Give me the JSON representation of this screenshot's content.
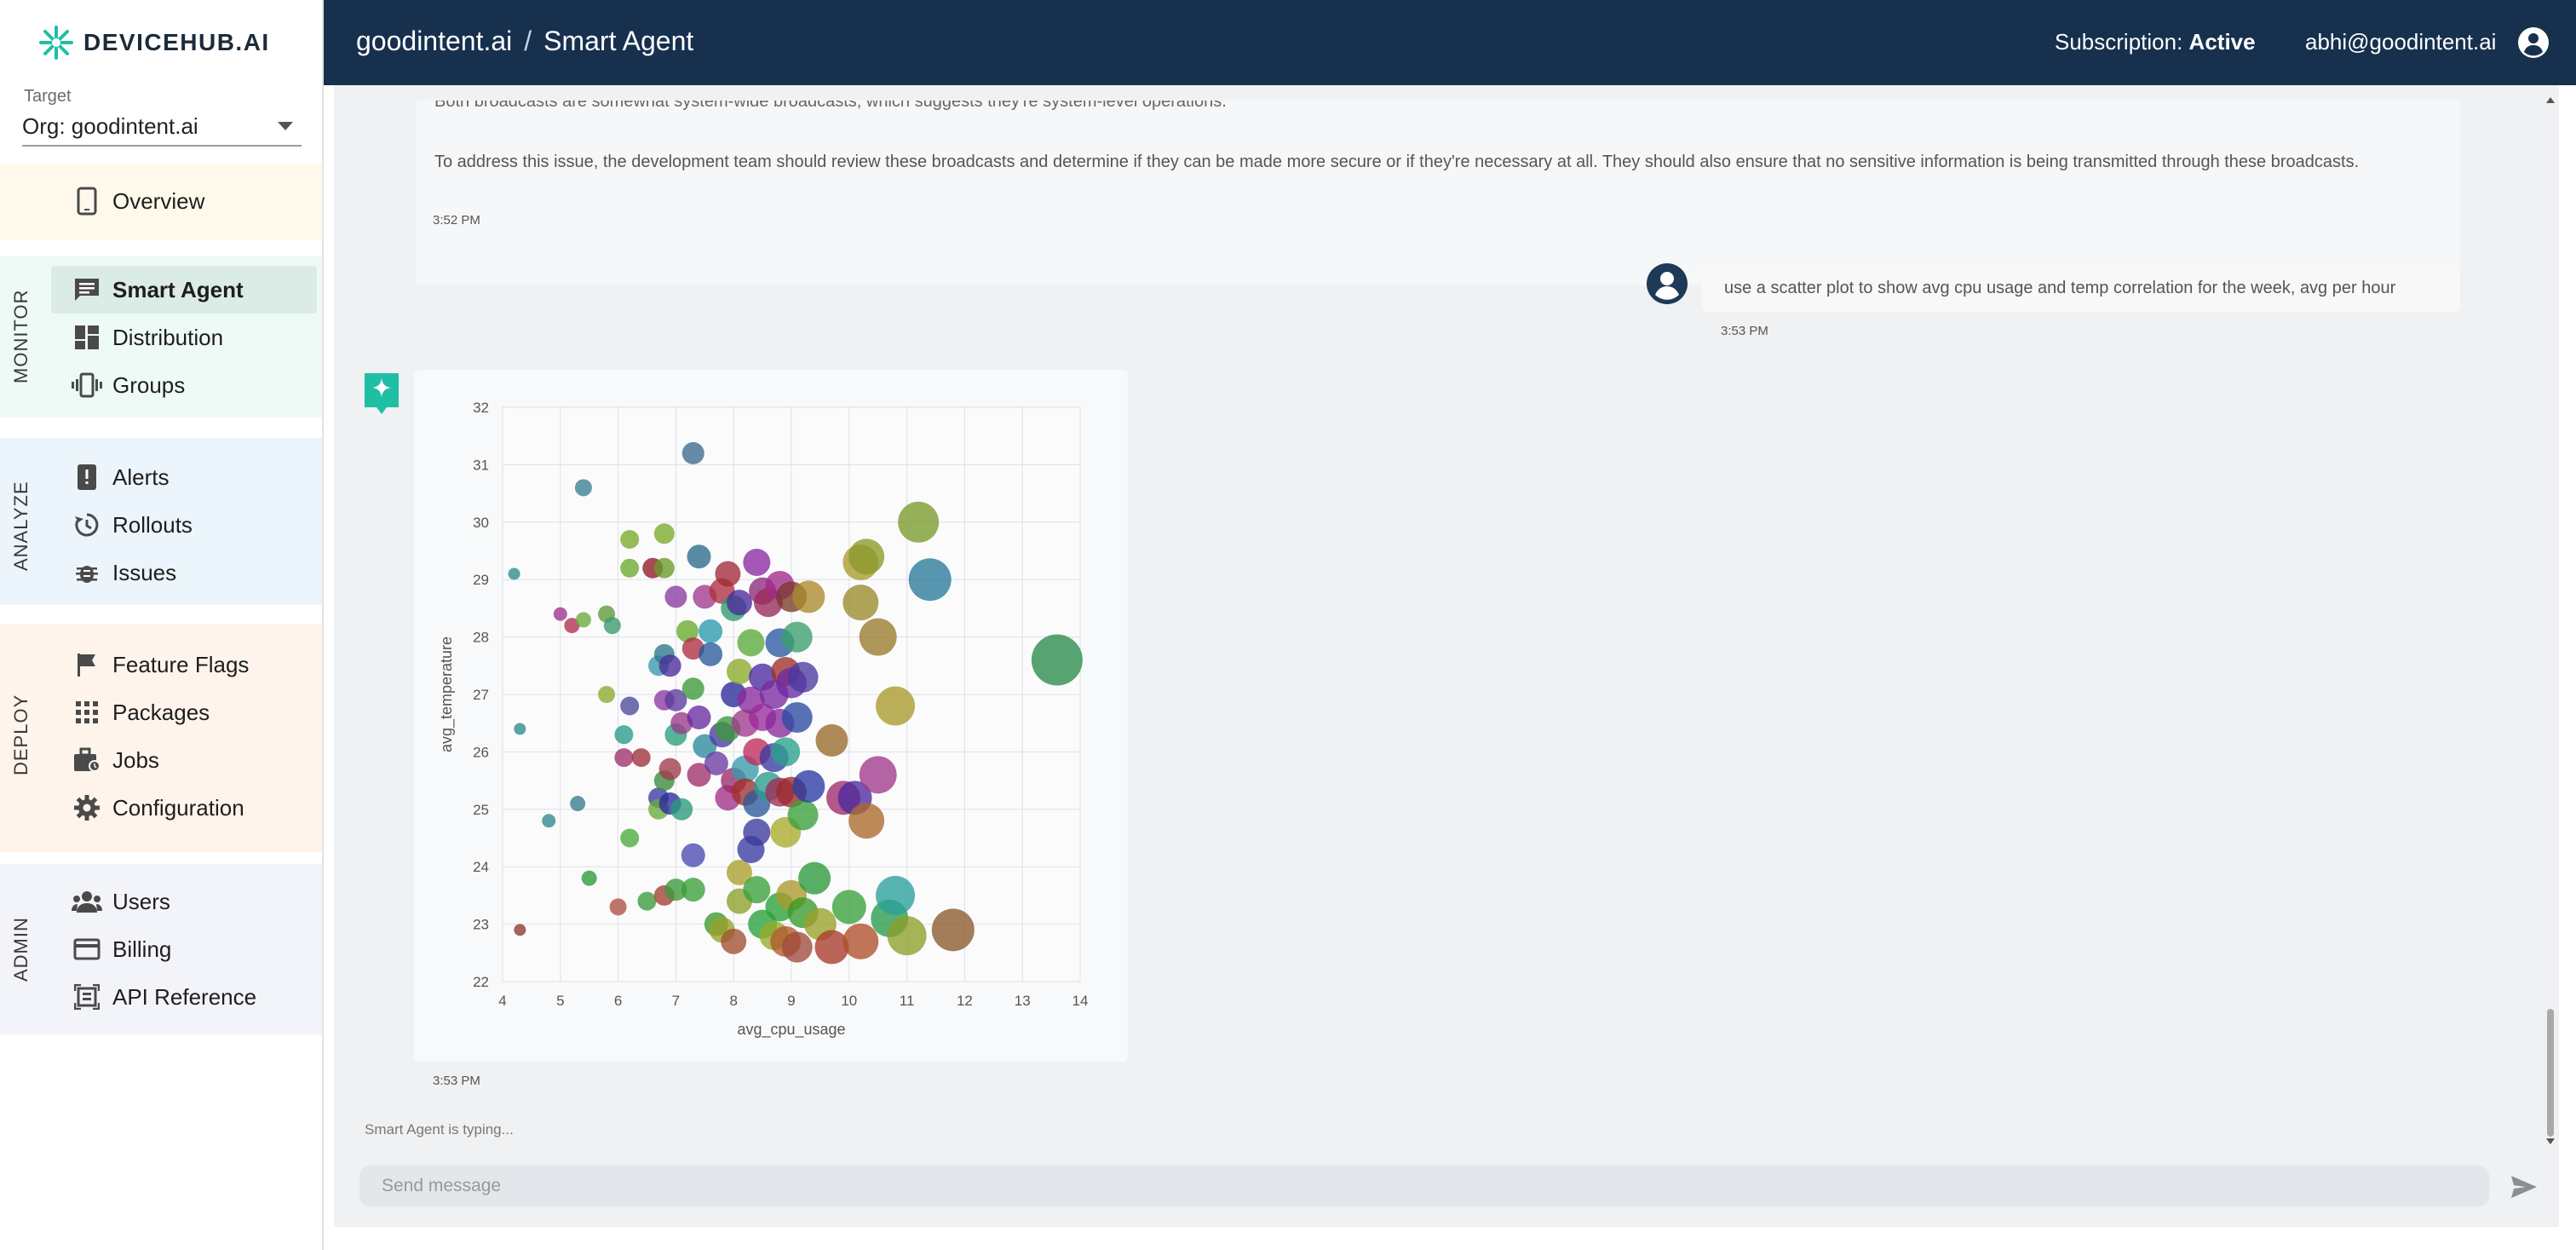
{
  "brand": {
    "name": "DEVICEHUB.AI"
  },
  "target": {
    "label": "Target",
    "value": "Org: goodintent.ai"
  },
  "header": {
    "org": "goodintent.ai",
    "separator": "/",
    "page": "Smart Agent",
    "subscription_label": "Subscription:",
    "subscription_status": "Active",
    "user_email": "abhi@goodintent.ai"
  },
  "sidebar": {
    "overview": {
      "label": "Overview",
      "icon": "phone-icon"
    },
    "sections": {
      "monitor": {
        "title": "MONITOR",
        "items": [
          {
            "label": "Smart Agent",
            "icon": "chat-icon",
            "active": true
          },
          {
            "label": "Distribution",
            "icon": "dashboard-icon"
          },
          {
            "label": "Groups",
            "icon": "vibration-icon"
          }
        ]
      },
      "analyze": {
        "title": "ANALYZE",
        "items": [
          {
            "label": "Alerts",
            "icon": "alert-icon"
          },
          {
            "label": "Rollouts",
            "icon": "history-icon"
          },
          {
            "label": "Issues",
            "icon": "bug-icon"
          }
        ]
      },
      "deploy": {
        "title": "DEPLOY",
        "items": [
          {
            "label": "Feature Flags",
            "icon": "flag-icon"
          },
          {
            "label": "Packages",
            "icon": "apps-icon"
          },
          {
            "label": "Jobs",
            "icon": "briefcase-icon"
          },
          {
            "label": "Configuration",
            "icon": "gear-icon"
          }
        ]
      },
      "admin": {
        "title": "ADMIN",
        "items": [
          {
            "label": "Users",
            "icon": "users-icon"
          },
          {
            "label": "Billing",
            "icon": "credit-card-icon"
          },
          {
            "label": "API Reference",
            "icon": "api-icon"
          }
        ]
      }
    }
  },
  "chat": {
    "agent_message_partial": "Both broadcasts are somewhat system-wide broadcasts, which suggests they're system-level operations.",
    "agent_message": "To address this issue, the development team should review these broadcasts and determine if they can be made more secure or if they're necessary at all. They should also ensure that no sensitive information is being transmitted through these broadcasts.",
    "agent_time_1": "3:52 PM",
    "user_message": "use a scatter plot to show avg cpu usage and temp correlation for the week, avg per hour",
    "user_time": "3:53 PM",
    "agent_time_2": "3:53 PM",
    "typing_text": "Smart Agent is typing...",
    "input_placeholder": "Send message",
    "input_value": ""
  },
  "chart_data": {
    "type": "scatter",
    "title": "",
    "xlabel": "avg_cpu_usage",
    "ylabel": "avg_temperature",
    "xlim": [
      4,
      14
    ],
    "ylim": [
      22,
      32
    ],
    "xticks": [
      4,
      5,
      6,
      7,
      8,
      9,
      10,
      11,
      12,
      13,
      14
    ],
    "yticks": [
      22,
      23,
      24,
      25,
      26,
      27,
      28,
      29,
      30,
      31,
      32
    ],
    "grid": true,
    "legend": "none",
    "encoding": "bubble size and color vary per point",
    "points": [
      {
        "x": 4.2,
        "y": 29.1,
        "r": 7,
        "color": "#2e8b8b"
      },
      {
        "x": 4.3,
        "y": 26.4,
        "r": 7,
        "color": "#2e8b8b"
      },
      {
        "x": 4.3,
        "y": 22.9,
        "r": 7,
        "color": "#8b3a2a"
      },
      {
        "x": 4.8,
        "y": 24.8,
        "r": 8,
        "color": "#2e8b8b"
      },
      {
        "x": 5.0,
        "y": 28.4,
        "r": 8,
        "color": "#a0308a"
      },
      {
        "x": 5.2,
        "y": 28.2,
        "r": 9,
        "color": "#b03050"
      },
      {
        "x": 5.3,
        "y": 25.1,
        "r": 9,
        "color": "#3a7a8a"
      },
      {
        "x": 5.4,
        "y": 30.6,
        "r": 10,
        "color": "#3a8090"
      },
      {
        "x": 5.4,
        "y": 28.3,
        "r": 9,
        "color": "#6aaa3a"
      },
      {
        "x": 5.5,
        "y": 23.8,
        "r": 9,
        "color": "#2a9a3a"
      },
      {
        "x": 5.8,
        "y": 27.0,
        "r": 10,
        "color": "#8aaa2a"
      },
      {
        "x": 5.8,
        "y": 28.4,
        "r": 10,
        "color": "#5a9a3a"
      },
      {
        "x": 5.9,
        "y": 28.2,
        "r": 10,
        "color": "#3a9a6a"
      },
      {
        "x": 6.0,
        "y": 23.3,
        "r": 10,
        "color": "#b05040"
      },
      {
        "x": 6.1,
        "y": 25.9,
        "r": 11,
        "color": "#a0306a"
      },
      {
        "x": 6.1,
        "y": 26.3,
        "r": 11,
        "color": "#2a9a8a"
      },
      {
        "x": 6.2,
        "y": 29.2,
        "r": 11,
        "color": "#6aaa2a"
      },
      {
        "x": 6.2,
        "y": 26.8,
        "r": 11,
        "color": "#4a4a9a"
      },
      {
        "x": 6.2,
        "y": 24.5,
        "r": 11,
        "color": "#4aaa3a"
      },
      {
        "x": 6.2,
        "y": 29.7,
        "r": 11,
        "color": "#7aaa2a"
      },
      {
        "x": 6.4,
        "y": 25.9,
        "r": 11,
        "color": "#a0303a"
      },
      {
        "x": 6.5,
        "y": 23.4,
        "r": 11,
        "color": "#3a9a3a"
      },
      {
        "x": 6.6,
        "y": 29.2,
        "r": 12,
        "color": "#2a9a3a"
      },
      {
        "x": 6.6,
        "y": 29.2,
        "r": 12,
        "color": "#c03050"
      },
      {
        "x": 6.7,
        "y": 27.5,
        "r": 12,
        "color": "#3a9aaa"
      },
      {
        "x": 6.7,
        "y": 25.2,
        "r": 12,
        "color": "#3a3aa0"
      },
      {
        "x": 6.7,
        "y": 25.0,
        "r": 12,
        "color": "#6aaa3a"
      },
      {
        "x": 6.8,
        "y": 29.8,
        "r": 12,
        "color": "#7aaa2a"
      },
      {
        "x": 6.8,
        "y": 27.7,
        "r": 12,
        "color": "#2a7a8a"
      },
      {
        "x": 6.8,
        "y": 26.9,
        "r": 12,
        "color": "#8a3aa0"
      },
      {
        "x": 6.8,
        "y": 25.5,
        "r": 12,
        "color": "#3a8a3a"
      },
      {
        "x": 6.8,
        "y": 23.5,
        "r": 12,
        "color": "#a04030"
      },
      {
        "x": 6.8,
        "y": 29.2,
        "r": 12,
        "color": "#6a9a2a"
      },
      {
        "x": 6.9,
        "y": 27.5,
        "r": 13,
        "color": "#4a2a9a"
      },
      {
        "x": 6.9,
        "y": 25.1,
        "r": 13,
        "color": "#2a2a9a"
      },
      {
        "x": 6.9,
        "y": 25.7,
        "r": 13,
        "color": "#a03a4a"
      },
      {
        "x": 7.0,
        "y": 28.7,
        "r": 13,
        "color": "#8a3aa0"
      },
      {
        "x": 7.0,
        "y": 26.3,
        "r": 13,
        "color": "#2aa07a"
      },
      {
        "x": 7.0,
        "y": 23.6,
        "r": 13,
        "color": "#3a9a3a"
      },
      {
        "x": 7.0,
        "y": 26.9,
        "r": 13,
        "color": "#5a3aa0"
      },
      {
        "x": 7.1,
        "y": 25.0,
        "r": 13,
        "color": "#2a9a7a"
      },
      {
        "x": 7.1,
        "y": 26.5,
        "r": 13,
        "color": "#9a3a8a"
      },
      {
        "x": 7.2,
        "y": 28.1,
        "r": 13,
        "color": "#6aaa2a"
      },
      {
        "x": 7.3,
        "y": 31.2,
        "r": 13,
        "color": "#3a6a8a"
      },
      {
        "x": 7.3,
        "y": 27.8,
        "r": 13,
        "color": "#b03040"
      },
      {
        "x": 7.3,
        "y": 27.1,
        "r": 13,
        "color": "#3a9a3a"
      },
      {
        "x": 7.3,
        "y": 23.6,
        "r": 14,
        "color": "#3aa03a"
      },
      {
        "x": 7.3,
        "y": 24.2,
        "r": 14,
        "color": "#4a4ab0"
      },
      {
        "x": 7.4,
        "y": 29.4,
        "r": 14,
        "color": "#2a6a8a"
      },
      {
        "x": 7.4,
        "y": 26.6,
        "r": 14,
        "color": "#6a2aa0"
      },
      {
        "x": 7.4,
        "y": 25.6,
        "r": 14,
        "color": "#a0306a"
      },
      {
        "x": 7.5,
        "y": 28.7,
        "r": 14,
        "color": "#a03a8a"
      },
      {
        "x": 7.5,
        "y": 26.1,
        "r": 14,
        "color": "#2a8a9a"
      },
      {
        "x": 7.6,
        "y": 28.1,
        "r": 14,
        "color": "#2a9aaa"
      },
      {
        "x": 7.6,
        "y": 27.7,
        "r": 14,
        "color": "#2a5a9a"
      },
      {
        "x": 7.7,
        "y": 23.0,
        "r": 14,
        "color": "#3a9a2a"
      },
      {
        "x": 7.7,
        "y": 25.8,
        "r": 14,
        "color": "#6a3aa0"
      },
      {
        "x": 7.8,
        "y": 28.8,
        "r": 15,
        "color": "#b03040"
      },
      {
        "x": 7.8,
        "y": 26.3,
        "r": 15,
        "color": "#4a3aa0"
      },
      {
        "x": 7.8,
        "y": 22.9,
        "r": 15,
        "color": "#9aa02a"
      },
      {
        "x": 7.9,
        "y": 29.1,
        "r": 15,
        "color": "#a02a3a"
      },
      {
        "x": 7.9,
        "y": 26.4,
        "r": 15,
        "color": "#3a9a3a"
      },
      {
        "x": 7.9,
        "y": 25.2,
        "r": 15,
        "color": "#a0308a"
      },
      {
        "x": 8.0,
        "y": 28.5,
        "r": 15,
        "color": "#2a9a6a"
      },
      {
        "x": 8.0,
        "y": 27.0,
        "r": 15,
        "color": "#2a2a9a"
      },
      {
        "x": 8.0,
        "y": 25.5,
        "r": 15,
        "color": "#9a2a6a"
      },
      {
        "x": 8.0,
        "y": 22.7,
        "r": 15,
        "color": "#a05030"
      },
      {
        "x": 8.1,
        "y": 27.4,
        "r": 15,
        "color": "#8aaa2a"
      },
      {
        "x": 8.1,
        "y": 28.6,
        "r": 15,
        "color": "#4a2a9a"
      },
      {
        "x": 8.1,
        "y": 23.4,
        "r": 15,
        "color": "#8aa02a"
      },
      {
        "x": 8.1,
        "y": 23.9,
        "r": 15,
        "color": "#aaa02a"
      },
      {
        "x": 8.2,
        "y": 26.5,
        "r": 16,
        "color": "#a03a8a"
      },
      {
        "x": 8.2,
        "y": 25.7,
        "r": 16,
        "color": "#3a9aaa"
      },
      {
        "x": 8.2,
        "y": 25.3,
        "r": 16,
        "color": "#a0302a"
      },
      {
        "x": 8.3,
        "y": 27.9,
        "r": 16,
        "color": "#5aaa3a"
      },
      {
        "x": 8.3,
        "y": 26.9,
        "r": 16,
        "color": "#8a2a9a"
      },
      {
        "x": 8.3,
        "y": 24.3,
        "r": 16,
        "color": "#3a3aa0"
      },
      {
        "x": 8.4,
        "y": 29.3,
        "r": 16,
        "color": "#8a2aa0"
      },
      {
        "x": 8.4,
        "y": 26.0,
        "r": 16,
        "color": "#c02a5a"
      },
      {
        "x": 8.4,
        "y": 25.1,
        "r": 16,
        "color": "#2a5a9a"
      },
      {
        "x": 8.4,
        "y": 24.6,
        "r": 16,
        "color": "#3a3a9a"
      },
      {
        "x": 8.4,
        "y": 23.6,
        "r": 16,
        "color": "#3aa03a"
      },
      {
        "x": 8.5,
        "y": 28.8,
        "r": 16,
        "color": "#8a2a7a"
      },
      {
        "x": 8.5,
        "y": 27.3,
        "r": 16,
        "color": "#4a2aa0"
      },
      {
        "x": 8.5,
        "y": 26.6,
        "r": 16,
        "color": "#9a2a9a"
      },
      {
        "x": 8.5,
        "y": 23.0,
        "r": 17,
        "color": "#2aa03a"
      },
      {
        "x": 8.6,
        "y": 28.6,
        "r": 17,
        "color": "#9a2a5a"
      },
      {
        "x": 8.6,
        "y": 25.4,
        "r": 17,
        "color": "#2a9a8a"
      },
      {
        "x": 8.7,
        "y": 27.0,
        "r": 17,
        "color": "#7a2aa0"
      },
      {
        "x": 8.7,
        "y": 25.9,
        "r": 17,
        "color": "#3a3aa0"
      },
      {
        "x": 8.7,
        "y": 22.8,
        "r": 17,
        "color": "#9aaa2a"
      },
      {
        "x": 8.8,
        "y": 28.9,
        "r": 17,
        "color": "#a02a8a"
      },
      {
        "x": 8.8,
        "y": 27.9,
        "r": 17,
        "color": "#2a5aa0"
      },
      {
        "x": 8.8,
        "y": 26.5,
        "r": 17,
        "color": "#8a2a9a"
      },
      {
        "x": 8.8,
        "y": 25.3,
        "r": 17,
        "color": "#a02a5a"
      },
      {
        "x": 8.8,
        "y": 23.3,
        "r": 17,
        "color": "#2aa03a"
      },
      {
        "x": 8.9,
        "y": 27.4,
        "r": 17,
        "color": "#a0302a"
      },
      {
        "x": 8.9,
        "y": 26.0,
        "r": 17,
        "color": "#2aa08a"
      },
      {
        "x": 8.9,
        "y": 24.6,
        "r": 18,
        "color": "#aaaa2a"
      },
      {
        "x": 8.9,
        "y": 22.7,
        "r": 18,
        "color": "#b05a2a"
      },
      {
        "x": 9.0,
        "y": 28.7,
        "r": 18,
        "color": "#7a3a2a"
      },
      {
        "x": 9.0,
        "y": 27.2,
        "r": 18,
        "color": "#6a2aa0"
      },
      {
        "x": 9.0,
        "y": 25.3,
        "r": 18,
        "color": "#9a2a2a"
      },
      {
        "x": 9.0,
        "y": 23.5,
        "r": 18,
        "color": "#aa9a2a"
      },
      {
        "x": 9.1,
        "y": 28.0,
        "r": 18,
        "color": "#3aa06a"
      },
      {
        "x": 9.1,
        "y": 26.6,
        "r": 18,
        "color": "#2a4aa0"
      },
      {
        "x": 9.1,
        "y": 22.6,
        "r": 18,
        "color": "#a04a3a"
      },
      {
        "x": 9.2,
        "y": 27.3,
        "r": 18,
        "color": "#4a3aa0"
      },
      {
        "x": 9.2,
        "y": 24.9,
        "r": 18,
        "color": "#3aa03a"
      },
      {
        "x": 9.2,
        "y": 23.2,
        "r": 18,
        "color": "#3a9a2a"
      },
      {
        "x": 9.3,
        "y": 28.7,
        "r": 19,
        "color": "#aa8a2a"
      },
      {
        "x": 9.3,
        "y": 25.4,
        "r": 19,
        "color": "#2a3aa0"
      },
      {
        "x": 9.4,
        "y": 23.8,
        "r": 19,
        "color": "#2a9a3a"
      },
      {
        "x": 9.5,
        "y": 23.0,
        "r": 19,
        "color": "#9aa02a"
      },
      {
        "x": 9.7,
        "y": 26.2,
        "r": 19,
        "color": "#9a6a2a"
      },
      {
        "x": 9.7,
        "y": 22.6,
        "r": 20,
        "color": "#aa3a2a"
      },
      {
        "x": 9.9,
        "y": 25.2,
        "r": 20,
        "color": "#a02a6a"
      },
      {
        "x": 10.0,
        "y": 23.3,
        "r": 20,
        "color": "#3aa03a"
      },
      {
        "x": 10.1,
        "y": 25.2,
        "r": 20,
        "color": "#4a2aa0"
      },
      {
        "x": 10.2,
        "y": 29.3,
        "r": 21,
        "color": "#aa9a2a"
      },
      {
        "x": 10.2,
        "y": 28.6,
        "r": 21,
        "color": "#9a8a2a"
      },
      {
        "x": 10.2,
        "y": 22.7,
        "r": 21,
        "color": "#b0502a"
      },
      {
        "x": 10.3,
        "y": 29.4,
        "r": 21,
        "color": "#8a9a2a"
      },
      {
        "x": 10.3,
        "y": 24.8,
        "r": 21,
        "color": "#aa6a2a"
      },
      {
        "x": 10.5,
        "y": 28.0,
        "r": 22,
        "color": "#9a7a2a"
      },
      {
        "x": 10.5,
        "y": 25.6,
        "r": 22,
        "color": "#a03a8a"
      },
      {
        "x": 10.7,
        "y": 23.1,
        "r": 22,
        "color": "#2a9a4a"
      },
      {
        "x": 10.8,
        "y": 26.8,
        "r": 23,
        "color": "#aa9a2a"
      },
      {
        "x": 10.8,
        "y": 23.5,
        "r": 23,
        "color": "#2aa09a"
      },
      {
        "x": 11.0,
        "y": 22.8,
        "r": 23,
        "color": "#8aa02a"
      },
      {
        "x": 11.2,
        "y": 30.0,
        "r": 24,
        "color": "#7a9a2a"
      },
      {
        "x": 11.4,
        "y": 29.0,
        "r": 25,
        "color": "#2a7a9a"
      },
      {
        "x": 11.8,
        "y": 22.9,
        "r": 25,
        "color": "#8a5a2a"
      },
      {
        "x": 13.6,
        "y": 27.6,
        "r": 30,
        "color": "#2a8a4a"
      }
    ]
  },
  "colors": {
    "header_bg": "#16304e",
    "accent": "#1fbfa6",
    "active_nav_bg": "#dbece6",
    "chat_bg": "#f0f1f3"
  }
}
